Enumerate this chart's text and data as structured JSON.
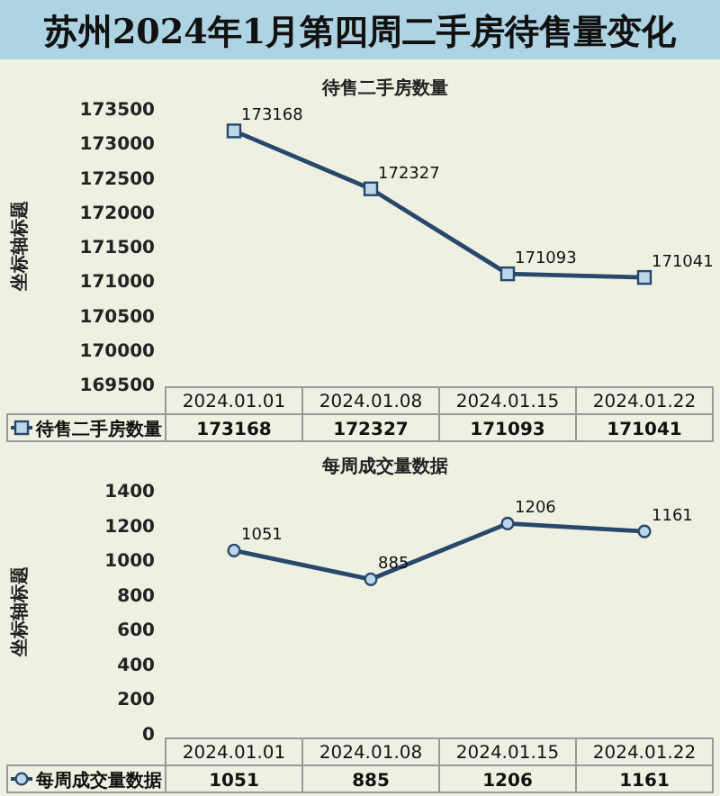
{
  "chart_data": [
    {
      "type": "line",
      "title": "苏州2024年1月第四周二手房待售量变化",
      "subtitle": "待售二手房数量",
      "ylabel": "坐标轴标题",
      "categories": [
        "2024.01.01",
        "2024.01.08",
        "2024.01.15",
        "2024.01.22"
      ],
      "series": [
        {
          "name": "待售二手房数量",
          "color": "#27486b",
          "values": [
            173168,
            172327,
            171093,
            171041
          ]
        }
      ],
      "annotations": [
        {
          "text": "173168",
          "x": "2024.01.01",
          "y": 173168
        },
        {
          "text": "172327",
          "x": "2024.01.08",
          "y": 172327
        },
        {
          "text": "171093",
          "x": "2024.01.15",
          "y": 171093
        },
        {
          "text": "171041",
          "x": "2024.01.22",
          "y": 171041
        }
      ],
      "ylim": [
        169500,
        173500
      ],
      "yticks": [
        169500,
        170000,
        170500,
        171000,
        171500,
        172000,
        172500,
        173000,
        173500
      ],
      "marker": "square",
      "data_labels": true,
      "legend": "bottom"
    },
    {
      "type": "line",
      "title": "每周成交量数据",
      "ylabel": "坐标轴标题",
      "categories": [
        "2024.01.01",
        "2024.01.08",
        "2024.01.15",
        "2024.01.22"
      ],
      "series": [
        {
          "name": "每周成交量数据",
          "color": "#27486b",
          "values": [
            1051,
            885,
            1206,
            1161
          ]
        }
      ],
      "annotations": [
        {
          "text": "1051",
          "x": "2024.01.01",
          "y": 1051
        },
        {
          "text": "885",
          "x": "2024.01.08",
          "y": 885
        },
        {
          "text": "1206",
          "x": "2024.01.15",
          "y": 1206
        },
        {
          "text": "1161",
          "x": "2024.01.22",
          "y": 1161
        }
      ],
      "ylim": [
        0,
        1400
      ],
      "yticks": [
        0,
        200,
        400,
        600,
        800,
        1000,
        1200,
        1400
      ],
      "marker": "circle",
      "data_labels": true,
      "legend": "bottom"
    }
  ]
}
